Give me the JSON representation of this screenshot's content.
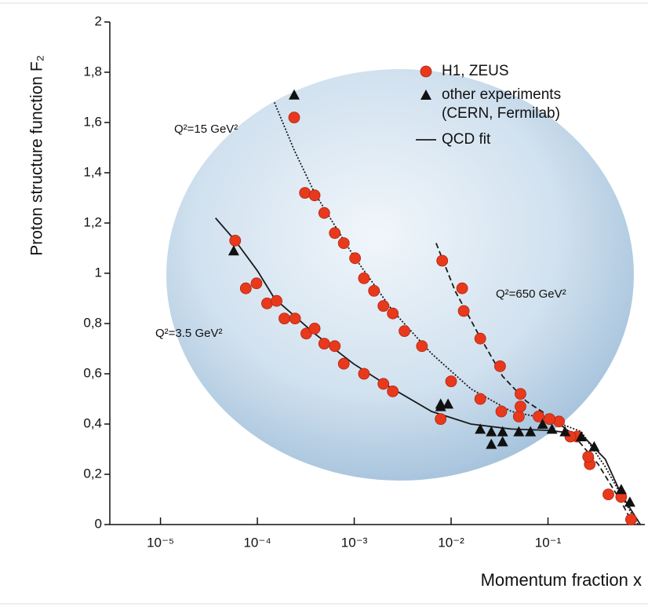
{
  "chart_data": {
    "type": "scatter",
    "x_label": "Momentum fraction x",
    "y_label": "Proton structure function F₂",
    "xscale": "log",
    "xlim": [
      3e-06,
      1
    ],
    "xticks": [
      {
        "value": 1e-05,
        "label": "10⁻⁵"
      },
      {
        "value": 0.0001,
        "label": "10⁻⁴"
      },
      {
        "value": 0.001,
        "label": "10⁻³"
      },
      {
        "value": 0.01,
        "label": "10⁻²"
      },
      {
        "value": 0.1,
        "label": "10⁻¹"
      }
    ],
    "ylim": [
      0,
      2
    ],
    "yticks": [
      0,
      {
        "value": 0.2,
        "label": "0,2"
      },
      {
        "value": 0.4,
        "label": "0,4"
      },
      {
        "value": 0.6,
        "label": "0,6"
      },
      {
        "value": 0.8,
        "label": "0,8"
      },
      1,
      {
        "value": 1.2,
        "label": "1,2"
      },
      {
        "value": 1.4,
        "label": "1,4"
      },
      {
        "value": 1.6,
        "label": "1,6"
      },
      {
        "value": 1.8,
        "label": "1,8"
      },
      2
    ],
    "series": [
      {
        "name": "H1, ZEUS",
        "color": "#e8391d",
        "marker": "circle",
        "x": [
          5.9e-05,
          7.6e-05,
          9.8e-05,
          0.000126,
          0.000158,
          0.00019,
          0.000245,
          0.00032,
          0.00039,
          0.00049,
          0.00063,
          0.00078,
          0.00126,
          0.002,
          0.0025,
          0.0078,
          0.00024,
          0.00031,
          0.00039,
          0.00049,
          0.00063,
          0.00078,
          0.00102,
          0.00126,
          0.0016,
          0.002,
          0.0025,
          0.0033,
          0.005,
          0.01,
          0.02,
          0.033,
          0.05,
          0.08,
          0.13,
          0.2,
          0.27,
          0.42,
          0.72,
          0.0081,
          0.013,
          0.0135,
          0.02,
          0.032,
          0.052,
          0.052,
          0.104,
          0.17,
          0.26,
          0.57
        ],
        "values": [
          1.13,
          0.94,
          0.96,
          0.88,
          0.89,
          0.82,
          0.82,
          0.76,
          0.78,
          0.72,
          0.71,
          0.64,
          0.6,
          0.56,
          0.53,
          0.42,
          1.62,
          1.32,
          1.31,
          1.24,
          1.16,
          1.12,
          1.06,
          0.98,
          0.93,
          0.87,
          0.84,
          0.77,
          0.71,
          0.57,
          0.5,
          0.45,
          0.43,
          0.43,
          0.41,
          0.35,
          0.24,
          0.12,
          0.02,
          1.05,
          0.94,
          0.85,
          0.74,
          0.63,
          0.52,
          0.47,
          0.42,
          0.35,
          0.27,
          0.11
        ]
      },
      {
        "name": "other experiments (CERN, Fermilab)",
        "color": "#111111",
        "marker": "triangle",
        "x": [
          5.7e-05,
          0.00024,
          0.0078,
          0.0078,
          0.0093,
          0.02,
          0.026,
          0.034,
          0.026,
          0.034,
          0.05,
          0.066,
          0.088,
          0.11,
          0.15,
          0.22,
          0.3,
          0.57,
          0.7
        ],
        "values": [
          1.09,
          1.71,
          0.47,
          0.48,
          0.48,
          0.38,
          0.37,
          0.37,
          0.32,
          0.33,
          0.37,
          0.37,
          0.4,
          0.38,
          0.37,
          0.35,
          0.31,
          0.14,
          0.09
        ]
      }
    ],
    "fit": {
      "name": "QCD fit",
      "color": "#1a1a1a",
      "curves": [
        {
          "label": "Q²=3.5 GeV²",
          "style": "solid",
          "x": [
            3.7e-05,
            5.9e-05,
            0.0001,
            0.00015,
            0.00039,
            0.00098,
            0.0025,
            0.0063,
            0.016,
            0.042,
            0.1,
            0.22,
            0.39,
            0.57,
            0.9
          ],
          "values": [
            1.22,
            1.13,
            1.01,
            0.9,
            0.76,
            0.64,
            0.54,
            0.45,
            0.4,
            0.38,
            0.375,
            0.36,
            0.26,
            0.12,
            0
          ]
        },
        {
          "label": "Q²=15 GeV²",
          "style": "dotted",
          "x": [
            0.00015,
            0.00024,
            0.00039,
            0.00098,
            0.0025,
            0.0063,
            0.016,
            0.042,
            0.1,
            0.22,
            0.39,
            0.69,
            0.85
          ],
          "values": [
            1.68,
            1.49,
            1.32,
            1.07,
            0.85,
            0.68,
            0.54,
            0.45,
            0.42,
            0.37,
            0.23,
            0.06,
            0
          ]
        },
        {
          "label": "Q²=650 GeV²",
          "style": "dashed",
          "x": [
            0.007,
            0.011,
            0.019,
            0.034,
            0.06,
            0.104,
            0.18,
            0.33,
            0.57,
            0.76
          ],
          "values": [
            1.12,
            0.93,
            0.76,
            0.59,
            0.49,
            0.43,
            0.36,
            0.24,
            0.09,
            0
          ]
        }
      ]
    }
  }
}
